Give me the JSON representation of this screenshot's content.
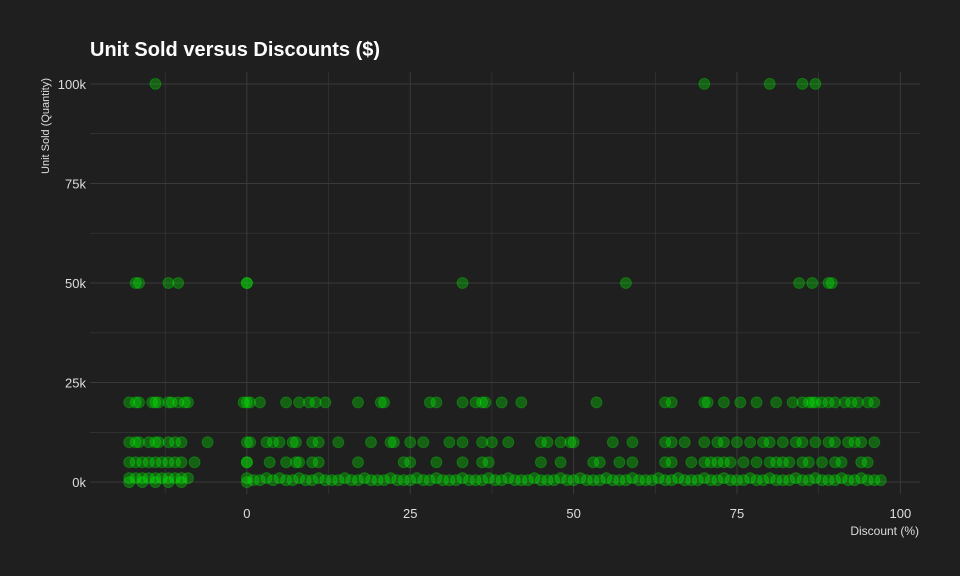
{
  "chart_data": {
    "type": "scatter",
    "title": "Unit Sold versus Discounts ($)",
    "xlabel": "Discount (%)",
    "ylabel": "Unit Sold (Quantity)",
    "xlim": [
      -24,
      103
    ],
    "ylim": [
      -3000,
      103000
    ],
    "x_ticks": [
      0,
      25,
      50,
      75,
      100
    ],
    "x_tick_labels": [
      "0",
      "25",
      "50",
      "75",
      "100"
    ],
    "y_ticks": [
      0,
      25000,
      50000,
      75000,
      100000
    ],
    "y_tick_labels": [
      "0k",
      "25k",
      "50k",
      "75k",
      "100k"
    ],
    "grid": true,
    "legend": "none",
    "colors": {
      "background": "#1f1f1f",
      "grid": "#3a3a3a",
      "point": "#00ff00",
      "text": "#dddddd",
      "title": "#ffffff"
    },
    "point_opacity": 0.3,
    "series": [
      {
        "points": [
          [
            -14,
            100000
          ],
          [
            70,
            100000
          ],
          [
            80,
            100000
          ],
          [
            85,
            100000
          ],
          [
            87,
            100000
          ],
          [
            -17,
            50000
          ],
          [
            -16.5,
            50000
          ],
          [
            -12,
            50000
          ],
          [
            -10.5,
            50000
          ],
          [
            0,
            50000
          ],
          [
            0,
            50000
          ],
          [
            33,
            50000
          ],
          [
            58,
            50000
          ],
          [
            84.5,
            50000
          ],
          [
            86.5,
            50000
          ],
          [
            89,
            50000
          ],
          [
            89.5,
            50000
          ],
          [
            -18,
            20000
          ],
          [
            -17,
            20000
          ],
          [
            -16.5,
            20000
          ],
          [
            -14.5,
            20000
          ],
          [
            -14,
            20000
          ],
          [
            -13.5,
            20000
          ],
          [
            -12,
            20000
          ],
          [
            -11.5,
            20000
          ],
          [
            -10.5,
            20000
          ],
          [
            -9.5,
            20000
          ],
          [
            -9,
            20000
          ],
          [
            -0.5,
            20000
          ],
          [
            0,
            20000
          ],
          [
            0.5,
            20000
          ],
          [
            2,
            20000
          ],
          [
            6,
            20000
          ],
          [
            8,
            20000
          ],
          [
            9.5,
            20000
          ],
          [
            10.5,
            20000
          ],
          [
            12,
            20000
          ],
          [
            17,
            20000
          ],
          [
            20.5,
            20000
          ],
          [
            21,
            20000
          ],
          [
            28,
            20000
          ],
          [
            29,
            20000
          ],
          [
            33,
            20000
          ],
          [
            35,
            20000
          ],
          [
            36,
            20000
          ],
          [
            36.5,
            20000
          ],
          [
            39,
            20000
          ],
          [
            42,
            20000
          ],
          [
            53.5,
            20000
          ],
          [
            64,
            20000
          ],
          [
            65,
            20000
          ],
          [
            70,
            20000
          ],
          [
            70.5,
            20000
          ],
          [
            73,
            20000
          ],
          [
            75.5,
            20000
          ],
          [
            78,
            20000
          ],
          [
            81,
            20000
          ],
          [
            83.5,
            20000
          ],
          [
            85,
            20000
          ],
          [
            86,
            20000
          ],
          [
            86.5,
            20000
          ],
          [
            87,
            20000
          ],
          [
            88,
            20000
          ],
          [
            89,
            20000
          ],
          [
            90,
            20000
          ],
          [
            91.5,
            20000
          ],
          [
            92.5,
            20000
          ],
          [
            93.5,
            20000
          ],
          [
            95,
            20000
          ],
          [
            96,
            20000
          ],
          [
            -18,
            10000
          ],
          [
            -17,
            10000
          ],
          [
            -16.5,
            10000
          ],
          [
            -15,
            10000
          ],
          [
            -14,
            10000
          ],
          [
            -13.5,
            10000
          ],
          [
            -12,
            10000
          ],
          [
            -11,
            10000
          ],
          [
            -10,
            10000
          ],
          [
            -6,
            10000
          ],
          [
            0,
            10000
          ],
          [
            0.5,
            10000
          ],
          [
            3,
            10000
          ],
          [
            4,
            10000
          ],
          [
            5,
            10000
          ],
          [
            7,
            10000
          ],
          [
            7.5,
            10000
          ],
          [
            10,
            10000
          ],
          [
            11,
            10000
          ],
          [
            14,
            10000
          ],
          [
            19,
            10000
          ],
          [
            22,
            10000
          ],
          [
            22.5,
            10000
          ],
          [
            25,
            10000
          ],
          [
            27,
            10000
          ],
          [
            31,
            10000
          ],
          [
            33,
            10000
          ],
          [
            36,
            10000
          ],
          [
            37.5,
            10000
          ],
          [
            40,
            10000
          ],
          [
            45,
            10000
          ],
          [
            46,
            10000
          ],
          [
            48,
            10000
          ],
          [
            49.5,
            10000
          ],
          [
            50,
            10000
          ],
          [
            56,
            10000
          ],
          [
            59,
            10000
          ],
          [
            64,
            10000
          ],
          [
            65,
            10000
          ],
          [
            67,
            10000
          ],
          [
            70,
            10000
          ],
          [
            72,
            10000
          ],
          [
            73,
            10000
          ],
          [
            75,
            10000
          ],
          [
            77,
            10000
          ],
          [
            79,
            10000
          ],
          [
            80,
            10000
          ],
          [
            82,
            10000
          ],
          [
            84,
            10000
          ],
          [
            85,
            10000
          ],
          [
            87,
            10000
          ],
          [
            89,
            10000
          ],
          [
            90,
            10000
          ],
          [
            92,
            10000
          ],
          [
            93,
            10000
          ],
          [
            94,
            10000
          ],
          [
            96,
            10000
          ],
          [
            -18,
            5000
          ],
          [
            -17,
            5000
          ],
          [
            -16,
            5000
          ],
          [
            -15,
            5000
          ],
          [
            -14,
            5000
          ],
          [
            -13,
            5000
          ],
          [
            -12,
            5000
          ],
          [
            -11,
            5000
          ],
          [
            -10,
            5000
          ],
          [
            -8,
            5000
          ],
          [
            0,
            5000
          ],
          [
            0,
            5000
          ],
          [
            3.5,
            5000
          ],
          [
            6,
            5000
          ],
          [
            7.5,
            5000
          ],
          [
            8,
            5000
          ],
          [
            10,
            5000
          ],
          [
            11,
            5000
          ],
          [
            17,
            5000
          ],
          [
            24,
            5000
          ],
          [
            25,
            5000
          ],
          [
            29,
            5000
          ],
          [
            33,
            5000
          ],
          [
            36,
            5000
          ],
          [
            37,
            5000
          ],
          [
            45,
            5000
          ],
          [
            48,
            5000
          ],
          [
            53,
            5000
          ],
          [
            54,
            5000
          ],
          [
            57,
            5000
          ],
          [
            59,
            5000
          ],
          [
            64,
            5000
          ],
          [
            65,
            5000
          ],
          [
            68,
            5000
          ],
          [
            70,
            5000
          ],
          [
            71,
            5000
          ],
          [
            72,
            5000
          ],
          [
            73,
            5000
          ],
          [
            74,
            5000
          ],
          [
            76,
            5000
          ],
          [
            78,
            5000
          ],
          [
            80,
            5000
          ],
          [
            81,
            5000
          ],
          [
            82,
            5000
          ],
          [
            83,
            5000
          ],
          [
            85,
            5000
          ],
          [
            86,
            5000
          ],
          [
            88,
            5000
          ],
          [
            90,
            5000
          ],
          [
            91,
            5000
          ],
          [
            94,
            5000
          ],
          [
            95,
            5000
          ],
          [
            -18,
            1000
          ],
          [
            -17,
            1000
          ],
          [
            -16,
            1000
          ],
          [
            -15,
            1000
          ],
          [
            -14,
            1000
          ],
          [
            -13,
            1000
          ],
          [
            -12,
            1000
          ],
          [
            -11,
            1000
          ],
          [
            -10,
            1000
          ],
          [
            -9,
            1000
          ],
          [
            -18,
            0
          ],
          [
            -16,
            0
          ],
          [
            -14,
            0
          ],
          [
            -12,
            0
          ],
          [
            -10,
            0
          ],
          [
            0,
            1000
          ],
          [
            0,
            0
          ],
          [
            1,
            500
          ],
          [
            2,
            500
          ],
          [
            3,
            1000
          ],
          [
            4,
            500
          ],
          [
            5,
            1000
          ],
          [
            6,
            500
          ],
          [
            7,
            500
          ],
          [
            8,
            1000
          ],
          [
            9,
            500
          ],
          [
            10,
            500
          ],
          [
            11,
            1000
          ],
          [
            12,
            500
          ],
          [
            13,
            500
          ],
          [
            14,
            500
          ],
          [
            15,
            1000
          ],
          [
            16,
            500
          ],
          [
            17,
            500
          ],
          [
            18,
            1000
          ],
          [
            19,
            500
          ],
          [
            20,
            500
          ],
          [
            21,
            500
          ],
          [
            22,
            1000
          ],
          [
            23,
            500
          ],
          [
            24,
            500
          ],
          [
            25,
            500
          ],
          [
            26,
            1000
          ],
          [
            27,
            500
          ],
          [
            28,
            500
          ],
          [
            29,
            1000
          ],
          [
            30,
            500
          ],
          [
            31,
            500
          ],
          [
            32,
            500
          ],
          [
            33,
            1000
          ],
          [
            34,
            500
          ],
          [
            35,
            500
          ],
          [
            36,
            500
          ],
          [
            37,
            1000
          ],
          [
            38,
            500
          ],
          [
            39,
            500
          ],
          [
            40,
            1000
          ],
          [
            41,
            500
          ],
          [
            42,
            500
          ],
          [
            43,
            500
          ],
          [
            44,
            1000
          ],
          [
            45,
            500
          ],
          [
            46,
            500
          ],
          [
            47,
            500
          ],
          [
            48,
            1000
          ],
          [
            49,
            500
          ],
          [
            50,
            500
          ],
          [
            51,
            1000
          ],
          [
            52,
            500
          ],
          [
            53,
            500
          ],
          [
            54,
            500
          ],
          [
            55,
            1000
          ],
          [
            56,
            500
          ],
          [
            57,
            500
          ],
          [
            58,
            500
          ],
          [
            59,
            1000
          ],
          [
            60,
            500
          ],
          [
            61,
            500
          ],
          [
            62,
            500
          ],
          [
            63,
            1000
          ],
          [
            64,
            500
          ],
          [
            65,
            500
          ],
          [
            66,
            1000
          ],
          [
            67,
            500
          ],
          [
            68,
            500
          ],
          [
            69,
            500
          ],
          [
            70,
            1000
          ],
          [
            71,
            500
          ],
          [
            72,
            500
          ],
          [
            73,
            1000
          ],
          [
            74,
            500
          ],
          [
            75,
            500
          ],
          [
            76,
            500
          ],
          [
            77,
            1000
          ],
          [
            78,
            500
          ],
          [
            79,
            500
          ],
          [
            80,
            1000
          ],
          [
            81,
            500
          ],
          [
            82,
            500
          ],
          [
            83,
            500
          ],
          [
            84,
            1000
          ],
          [
            85,
            500
          ],
          [
            86,
            500
          ],
          [
            87,
            1000
          ],
          [
            88,
            500
          ],
          [
            89,
            500
          ],
          [
            90,
            500
          ],
          [
            91,
            1000
          ],
          [
            92,
            500
          ],
          [
            93,
            500
          ],
          [
            94,
            1000
          ],
          [
            95,
            500
          ],
          [
            96,
            500
          ],
          [
            97,
            500
          ]
        ]
      }
    ]
  }
}
